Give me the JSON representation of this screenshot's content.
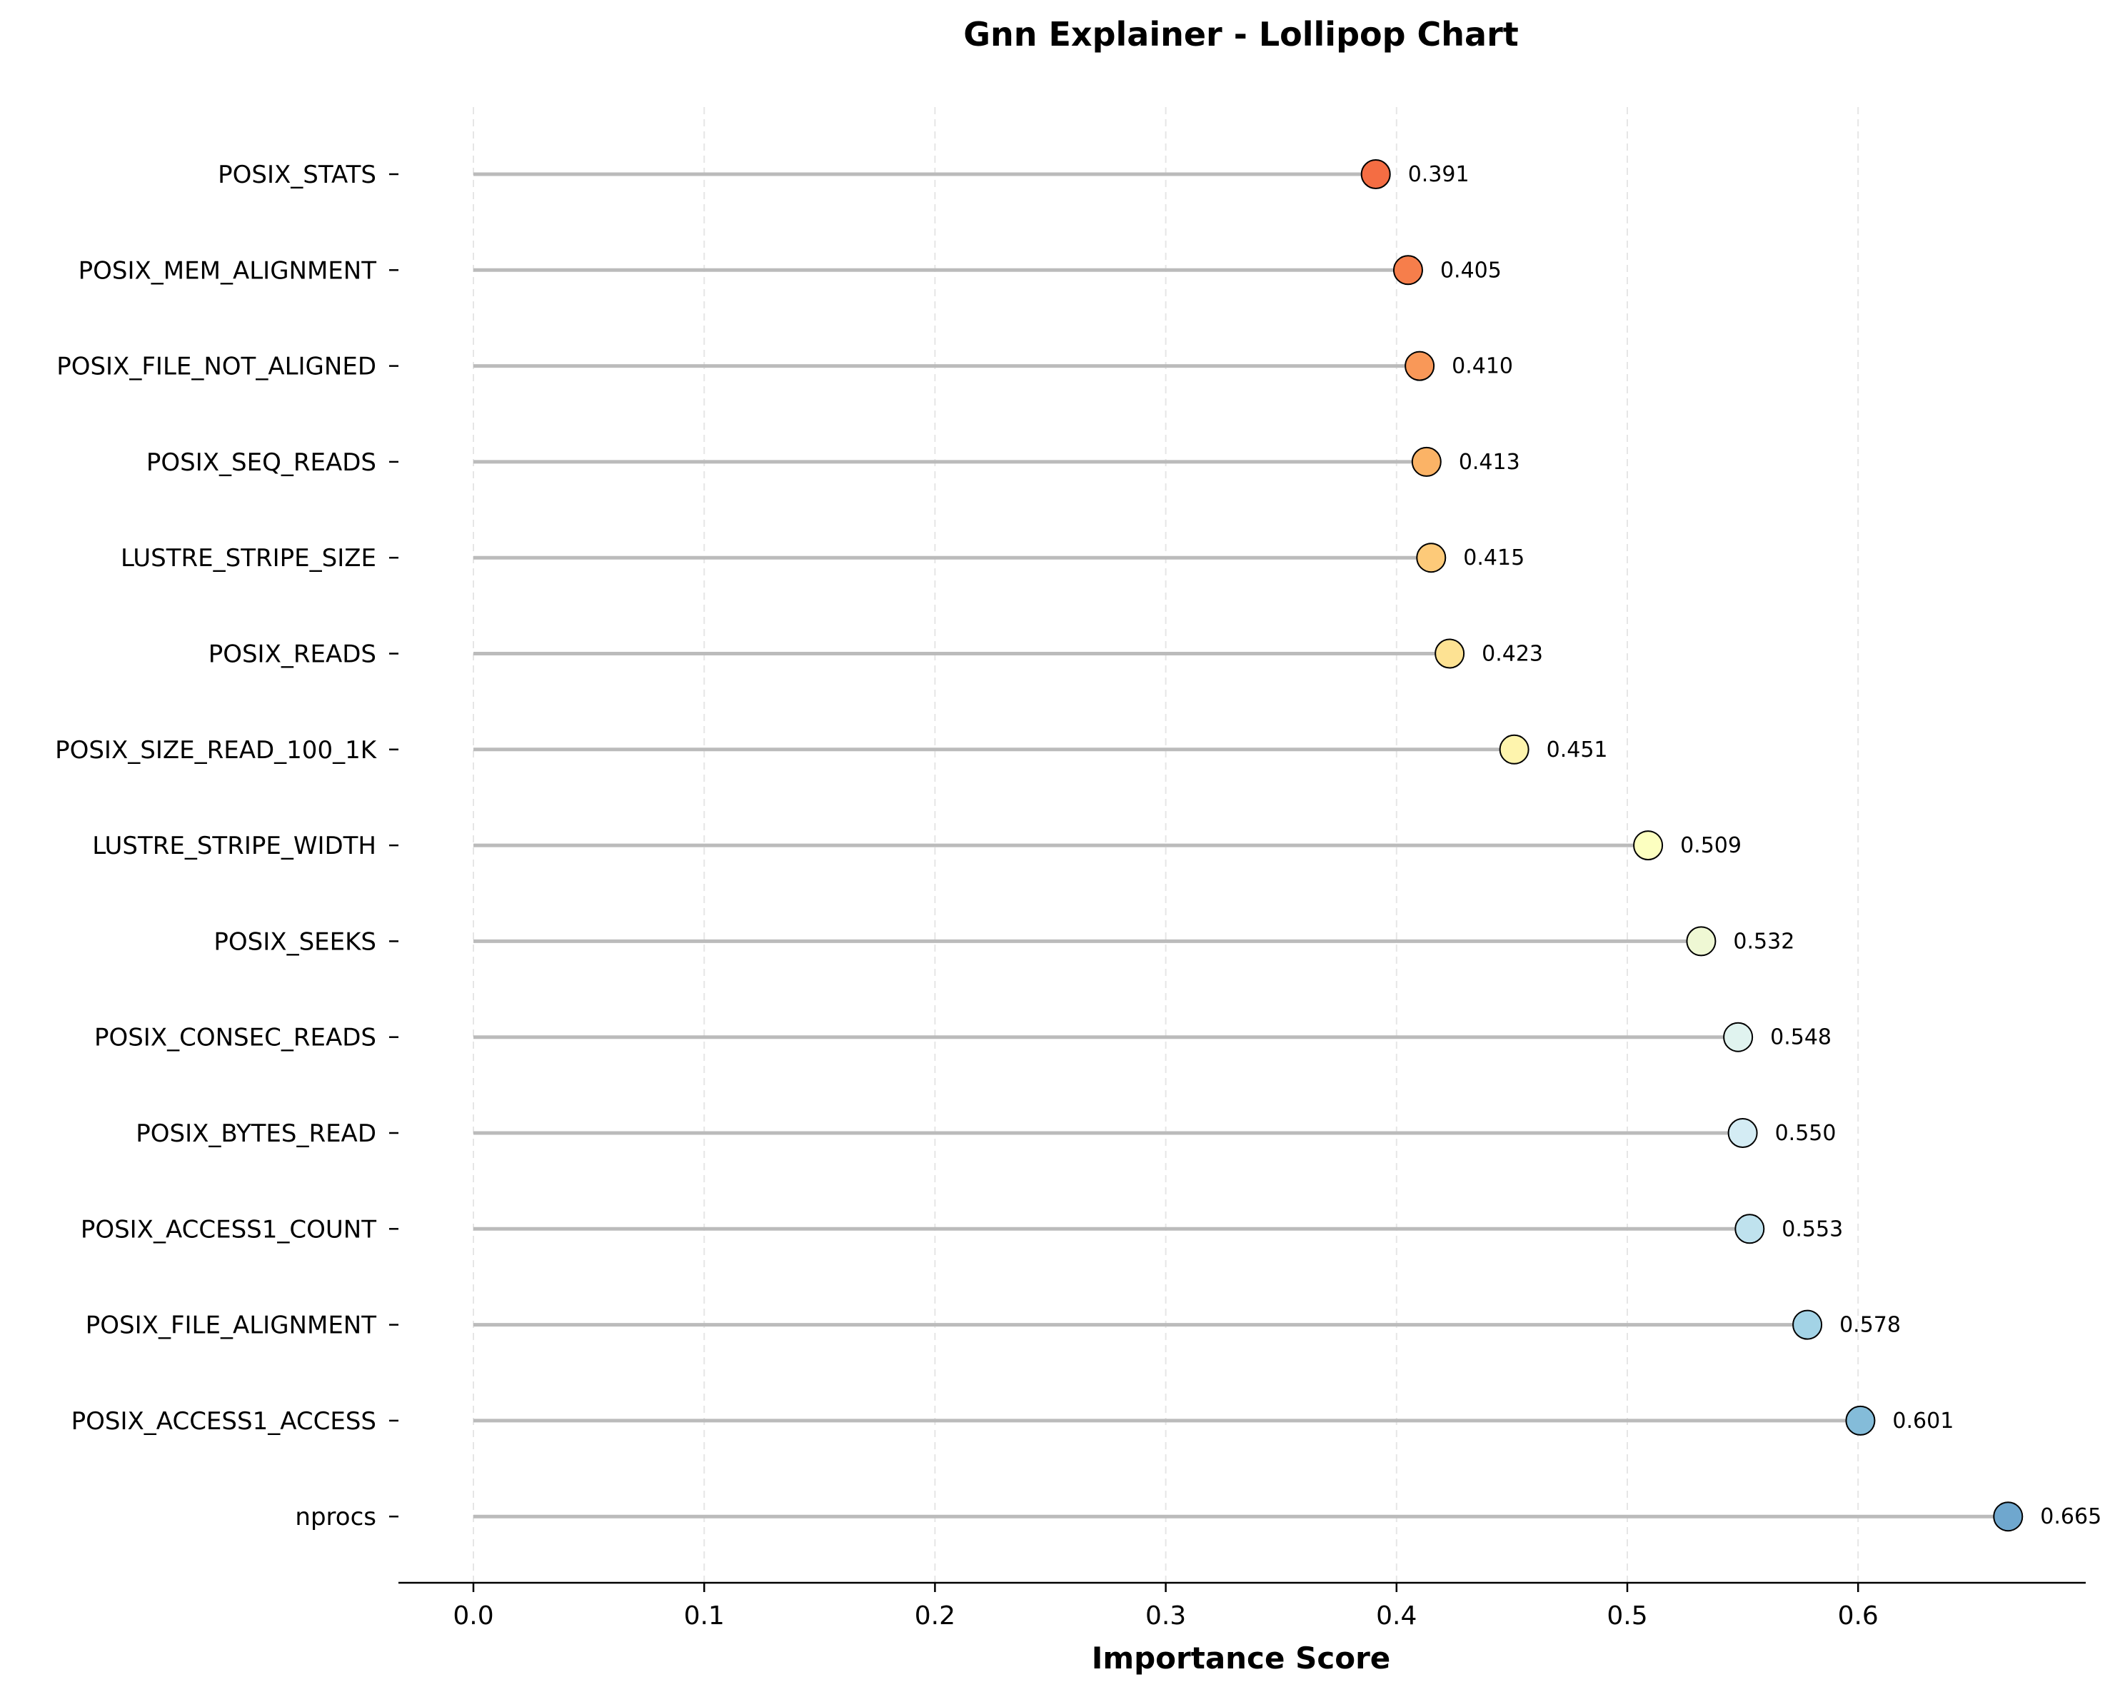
{
  "chart_data": {
    "type": "lollipop",
    "title": "Gnn Explainer - Lollipop Chart",
    "xlabel": "Importance Score",
    "ylabel": "",
    "xlim": [
      -0.033,
      0.698
    ],
    "xticks": [
      "0.0",
      "0.1",
      "0.2",
      "0.3",
      "0.4",
      "0.5",
      "0.6"
    ],
    "grid": "x-dashed",
    "categories": [
      "POSIX_STATS",
      "POSIX_MEM_ALIGNMENT",
      "POSIX_FILE_NOT_ALIGNED",
      "POSIX_SEQ_READS",
      "LUSTRE_STRIPE_SIZE",
      "POSIX_READS",
      "POSIX_SIZE_READ_100_1K",
      "LUSTRE_STRIPE_WIDTH",
      "POSIX_SEEKS",
      "POSIX_CONSEC_READS",
      "POSIX_BYTES_READ",
      "POSIX_ACCESS1_COUNT",
      "POSIX_FILE_ALIGNMENT",
      "POSIX_ACCESS1_ACCESS",
      "nprocs"
    ],
    "values": [
      0.391,
      0.405,
      0.41,
      0.413,
      0.415,
      0.423,
      0.451,
      0.509,
      0.532,
      0.548,
      0.55,
      0.553,
      0.578,
      0.601,
      0.665
    ],
    "value_labels": [
      "0.391",
      "0.405",
      "0.410",
      "0.413",
      "0.415",
      "0.423",
      "0.451",
      "0.509",
      "0.532",
      "0.548",
      "0.550",
      "0.553",
      "0.578",
      "0.601",
      "0.665"
    ],
    "colors": [
      "#f46d43",
      "#f67e4b",
      "#f99858",
      "#fbb366",
      "#fdca79",
      "#fde293",
      "#fef4ad",
      "#fcffc0",
      "#eff8d4",
      "#e0f3ef",
      "#d4ecf4",
      "#bfe2ee",
      "#a3d3e6",
      "#84bcd9",
      "#6fa7ce"
    ],
    "stem_color": "#bbbbbb",
    "marker_edge_color": "#000000"
  }
}
